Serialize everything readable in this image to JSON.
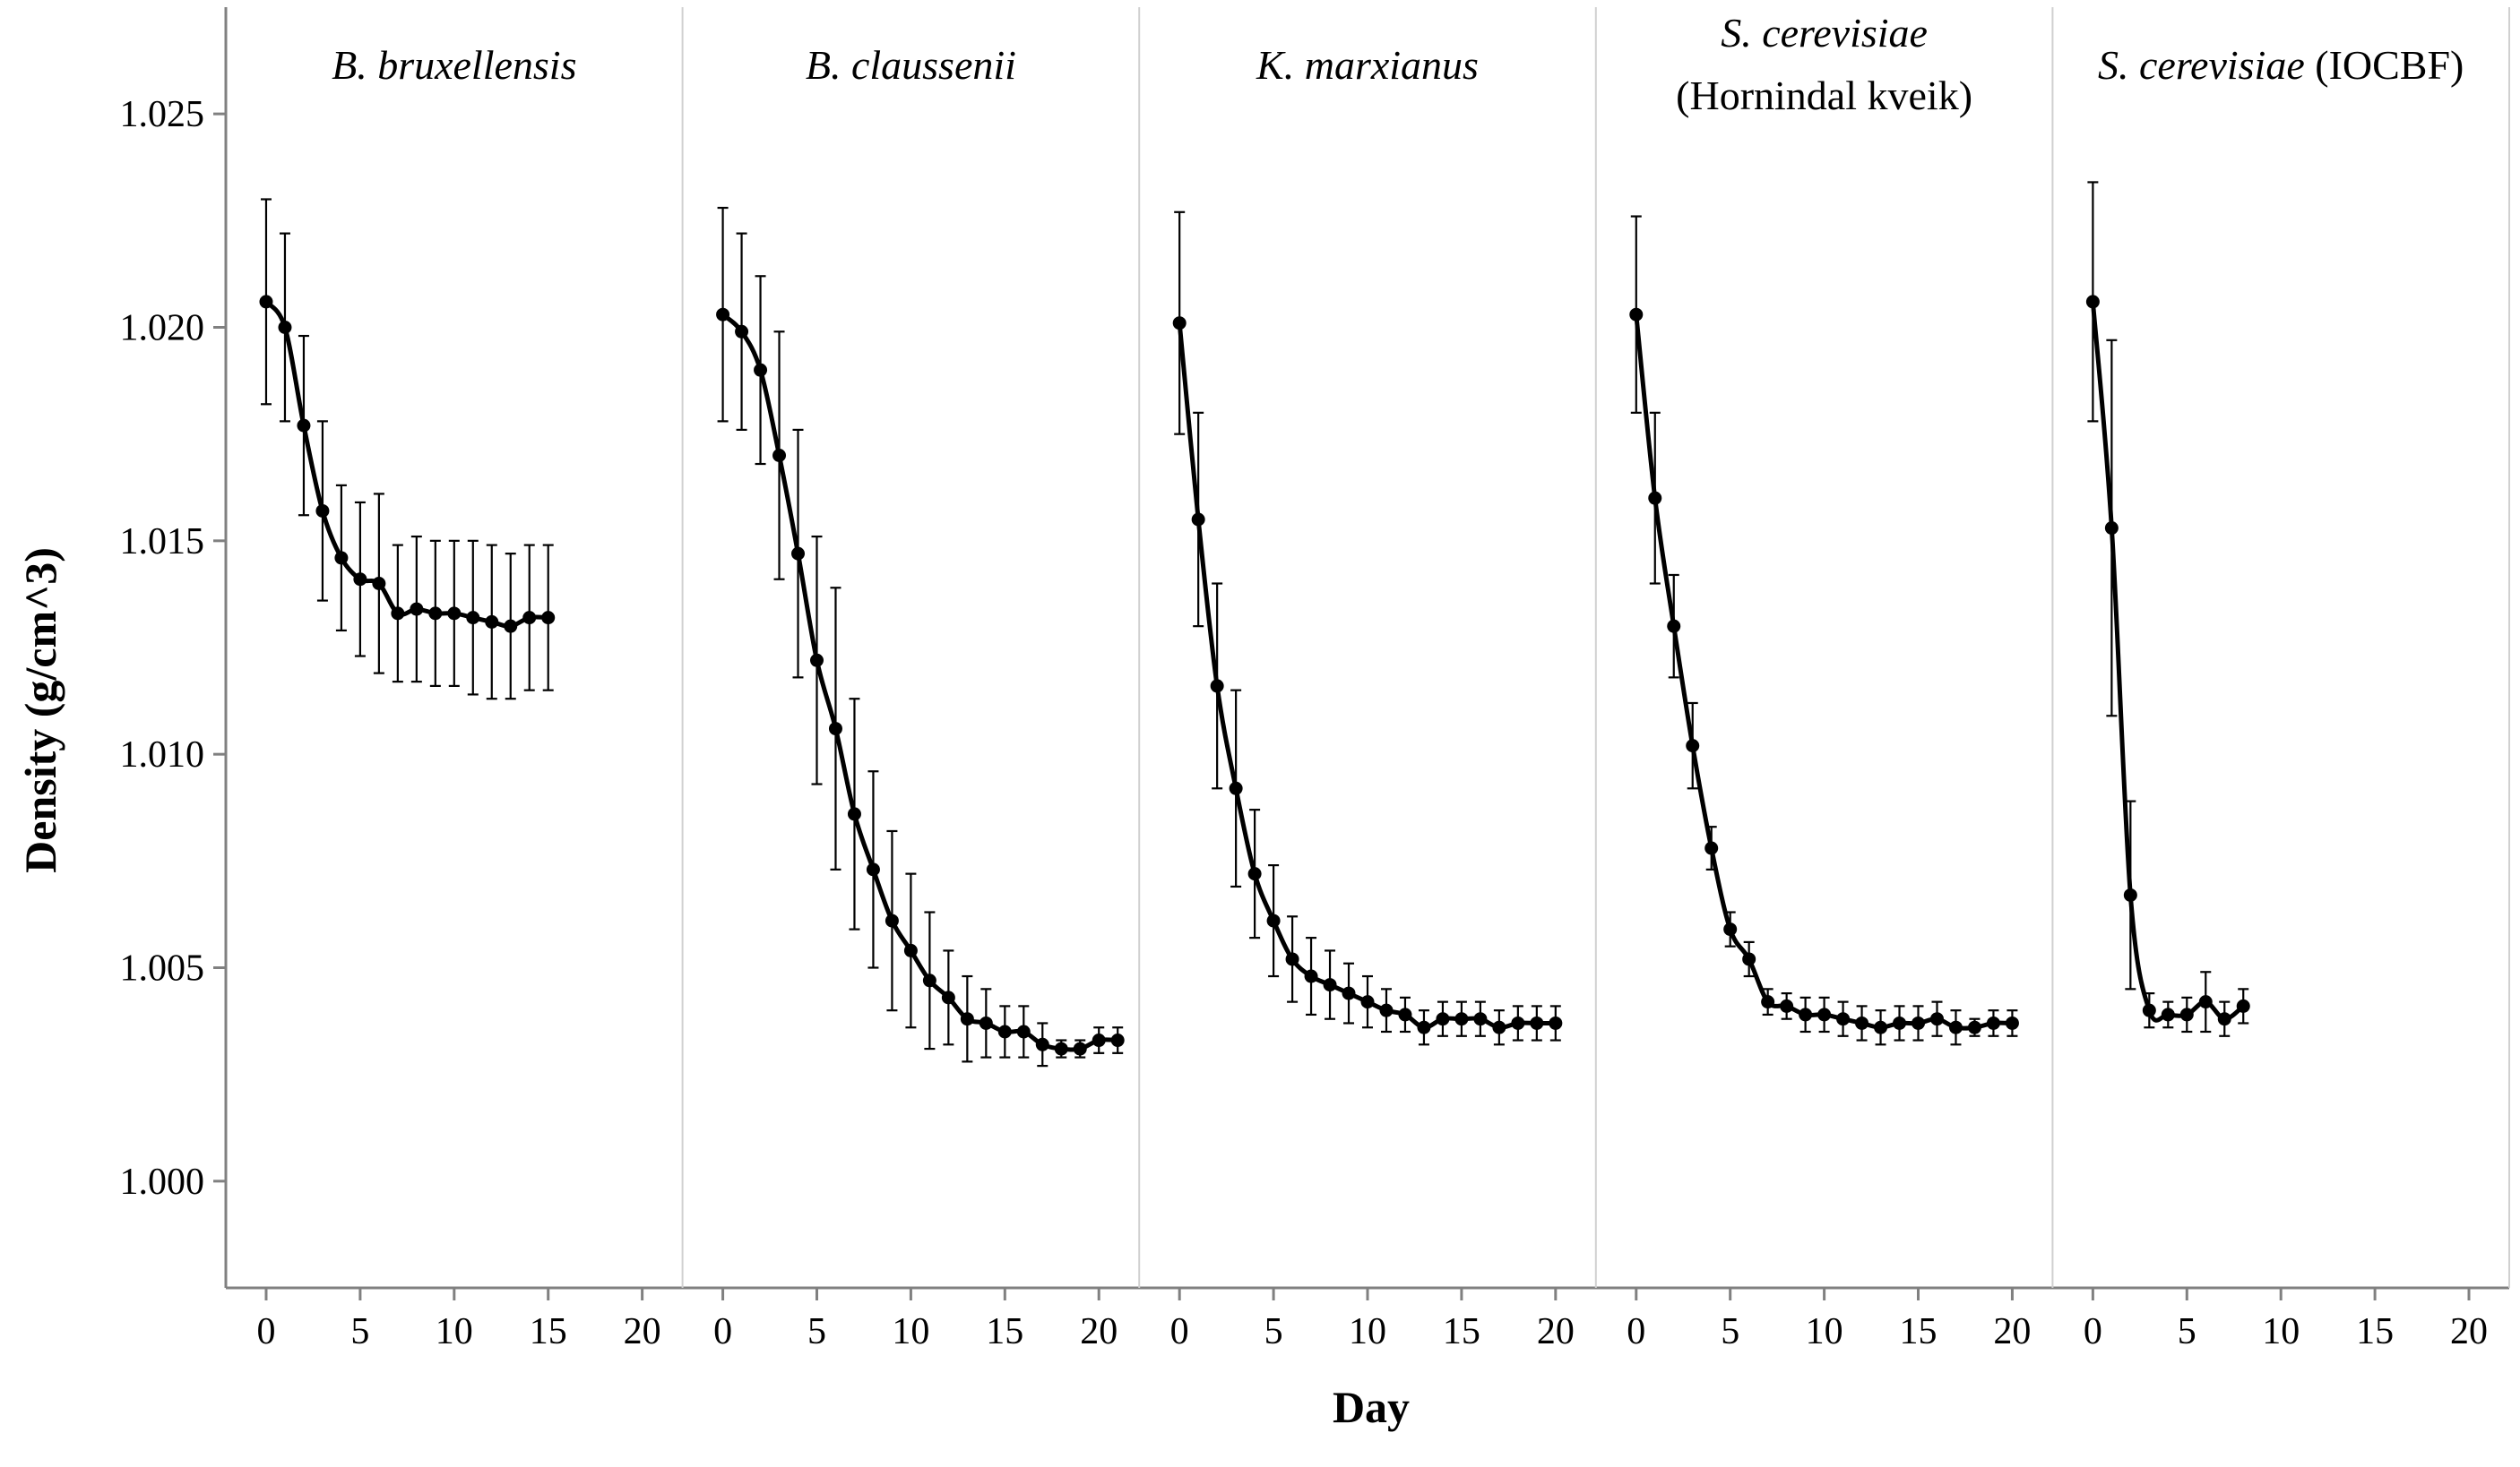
{
  "chart_data": {
    "type": "line",
    "ylabel": "Density (g/cm^3)",
    "xlabel": "Day",
    "ylim": [
      0.9975,
      1.0275
    ],
    "yticks": [
      1.0,
      1.005,
      1.01,
      1.015,
      1.02,
      1.025
    ],
    "ytick_labels": [
      "1.000",
      "1.005",
      "1.010",
      "1.015",
      "1.020",
      "1.025"
    ],
    "xlim": [
      -1,
      21
    ],
    "xticks": [
      0,
      5,
      10,
      15,
      20
    ],
    "xtick_labels": [
      "0",
      "5",
      "10",
      "15",
      "20"
    ],
    "line_color": "#000000",
    "divider_color": "#d0d0d0",
    "axis_color": "#808080",
    "panels": [
      {
        "title_italic": "B. bruxellensis",
        "title_plain": "",
        "title_line2": "",
        "x": [
          0,
          1,
          2,
          3,
          4,
          5,
          6,
          7,
          8,
          9,
          10,
          11,
          12,
          13,
          14,
          15
        ],
        "y": [
          1.0206,
          1.02,
          1.0177,
          1.0157,
          1.0146,
          1.0141,
          1.014,
          1.0133,
          1.0134,
          1.0133,
          1.0133,
          1.0132,
          1.0131,
          1.013,
          1.0132,
          1.0132
        ],
        "error": [
          0.0024,
          0.0022,
          0.0021,
          0.0021,
          0.0017,
          0.0018,
          0.0021,
          0.0016,
          0.0017,
          0.0017,
          0.0017,
          0.0018,
          0.0018,
          0.0017,
          0.0017,
          0.0017
        ]
      },
      {
        "title_italic": "B. claussenii",
        "title_plain": "",
        "title_line2": "",
        "x": [
          0,
          1,
          2,
          3,
          4,
          5,
          6,
          7,
          8,
          9,
          10,
          11,
          12,
          13,
          14,
          15,
          16,
          17,
          18,
          19,
          20,
          21
        ],
        "y": [
          1.0203,
          1.0199,
          1.019,
          1.017,
          1.0147,
          1.0122,
          1.0106,
          1.0086,
          1.0073,
          1.0061,
          1.0054,
          1.0047,
          1.0043,
          1.0038,
          1.0037,
          1.0035,
          1.0035,
          1.0032,
          1.0031,
          1.0031,
          1.0033,
          1.0033
        ],
        "error": [
          0.0025,
          0.0023,
          0.0022,
          0.0029,
          0.0029,
          0.0029,
          0.0033,
          0.0027,
          0.0023,
          0.0021,
          0.0018,
          0.0016,
          0.0011,
          0.001,
          0.0008,
          0.0006,
          0.0006,
          0.0005,
          0.0002,
          0.0002,
          0.0003,
          0.0003
        ]
      },
      {
        "title_italic": "K. marxianus",
        "title_plain": "",
        "title_line2": "",
        "x": [
          0,
          1,
          2,
          3,
          4,
          5,
          6,
          7,
          8,
          9,
          10,
          11,
          12,
          13,
          14,
          15,
          16,
          17,
          18,
          19,
          20
        ],
        "y": [
          1.0201,
          1.0155,
          1.0116,
          1.0092,
          1.0072,
          1.0061,
          1.0052,
          1.0048,
          1.0046,
          1.0044,
          1.0042,
          1.004,
          1.0039,
          1.0036,
          1.0038,
          1.0038,
          1.0038,
          1.0036,
          1.0037,
          1.0037,
          1.0037
        ],
        "error": [
          0.0026,
          0.0025,
          0.0024,
          0.0023,
          0.0015,
          0.0013,
          0.001,
          0.0009,
          0.0008,
          0.0007,
          0.0006,
          0.0005,
          0.0004,
          0.0004,
          0.0004,
          0.0004,
          0.0004,
          0.0004,
          0.0004,
          0.0004,
          0.0004
        ]
      },
      {
        "title_italic": "S. cerevisiae",
        "title_plain": "",
        "title_line2": "(Hornindal kveik)",
        "x": [
          0,
          1,
          2,
          3,
          4,
          5,
          6,
          7,
          8,
          9,
          10,
          11,
          12,
          13,
          14,
          15,
          16,
          17,
          18,
          19,
          20
        ],
        "y": [
          1.0203,
          1.016,
          1.013,
          1.0102,
          1.0078,
          1.0059,
          1.0052,
          1.0042,
          1.0041,
          1.0039,
          1.0039,
          1.0038,
          1.0037,
          1.0036,
          1.0037,
          1.0037,
          1.0038,
          1.0036,
          1.0036,
          1.0037,
          1.0037
        ],
        "error": [
          0.0023,
          0.002,
          0.0012,
          0.001,
          0.0005,
          0.0004,
          0.0004,
          0.0003,
          0.0003,
          0.0004,
          0.0004,
          0.0004,
          0.0004,
          0.0004,
          0.0004,
          0.0004,
          0.0004,
          0.0004,
          0.0002,
          0.0003,
          0.0003
        ]
      },
      {
        "title_italic": "S. cerevisiae",
        "title_plain": " (IOCBF)",
        "title_line2": "",
        "x": [
          0,
          1,
          2,
          3,
          4,
          5,
          6,
          7,
          8
        ],
        "y": [
          1.0206,
          1.0153,
          1.0067,
          1.004,
          1.0039,
          1.0039,
          1.0042,
          1.0038,
          1.0041
        ],
        "error": [
          0.0028,
          0.0044,
          0.0022,
          0.0004,
          0.0003,
          0.0004,
          0.0007,
          0.0004,
          0.0004
        ]
      }
    ]
  }
}
